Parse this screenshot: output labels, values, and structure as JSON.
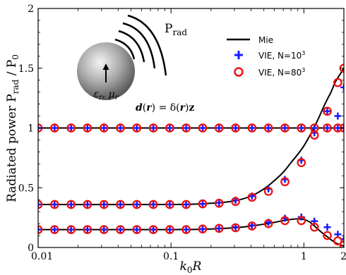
{
  "chart_data": {
    "type": "line",
    "xscale": "log",
    "xlim": [
      0.01,
      2
    ],
    "ylim": [
      0,
      2
    ],
    "x_ticks": [
      0.01,
      0.1,
      1,
      2
    ],
    "x_tick_labels": [
      "0.01",
      "0.1",
      "1",
      "2"
    ],
    "y_ticks": [
      0,
      0.5,
      1,
      1.5,
      2
    ],
    "y_tick_labels": [
      "0",
      "0.5",
      "1",
      "1.5",
      "2"
    ],
    "xlabel_main": "k",
    "xlabel_sub": "0",
    "xlabel_tail": "R",
    "ylabel_main": "Radiated power P",
    "ylabel_sub": "rad",
    "ylabel_tail": " / P",
    "ylabel_sub2": "0",
    "grid": false,
    "legend_position": "top-right",
    "legend": [
      {
        "label": "Mie",
        "style": "line",
        "color": "#000000"
      },
      {
        "label": "VIE, N=10",
        "sup": "3",
        "style": "plus",
        "color": "#1a1aff"
      },
      {
        "label": "VIE, N=80",
        "sup": "3",
        "style": "circle",
        "color": "#ee1111"
      }
    ],
    "annotations": {
      "prad_main": "P",
      "prad_sub": "rad",
      "sphere_eps": "ε",
      "sphere_eps_sub": "r",
      "sphere_comma": ", ",
      "sphere_mu": "μ",
      "sphere_mu_sub": "r",
      "dipole_d": "d",
      "dipole_r1": "(",
      "dipole_r": "r",
      "dipole_mid": ") = δ(",
      "dipole_r2": "r",
      "dipole_end": ")",
      "dipole_z": "z"
    },
    "series": [
      {
        "name": "Mie",
        "kind": "line",
        "color": "#000000",
        "curves": [
          {
            "x": [
              0.01,
              0.1,
              0.5,
              1,
              1.5,
              2
            ],
            "y": [
              1,
              1,
              1,
              1,
              1,
              1
            ]
          },
          {
            "x": [
              0.01,
              0.1,
              0.2,
              0.3,
              0.4,
              0.5,
              0.6,
              0.7,
              0.8,
              0.9,
              1.0,
              1.1,
              1.2,
              1.3,
              1.4,
              1.5,
              1.6,
              1.7,
              1.8,
              1.9,
              2.0
            ],
            "y": [
              0.36,
              0.36,
              0.37,
              0.39,
              0.43,
              0.49,
              0.56,
              0.63,
              0.71,
              0.78,
              0.85,
              0.93,
              1.01,
              1.09,
              1.17,
              1.24,
              1.3,
              1.37,
              1.42,
              1.46,
              1.5
            ]
          },
          {
            "x": [
              0.01,
              0.1,
              0.2,
              0.3,
              0.4,
              0.5,
              0.6,
              0.7,
              0.8,
              0.9,
              1.0,
              1.1,
              1.2,
              1.3,
              1.4,
              1.5,
              1.6,
              1.7,
              1.8,
              1.9,
              2.0
            ],
            "y": [
              0.15,
              0.15,
              0.155,
              0.165,
              0.18,
              0.195,
              0.21,
              0.225,
              0.235,
              0.24,
              0.235,
              0.215,
              0.18,
              0.145,
              0.115,
              0.09,
              0.065,
              0.045,
              0.03,
              0.02,
              0.01
            ]
          }
        ]
      },
      {
        "name": "VIE, N=10^3",
        "kind": "plus",
        "color": "#1a1aff",
        "curves": [
          {
            "x": [
              0.01,
              0.0133,
              0.0177,
              0.0235,
              0.0313,
              0.0416,
              0.0553,
              0.0736,
              0.0979,
              0.13,
              0.173,
              0.23,
              0.306,
              0.407,
              0.541,
              0.72,
              0.957,
              1.2,
              1.5,
              1.8,
              2.0
            ],
            "y": [
              1,
              1,
              1,
              1,
              1,
              1,
              1,
              1,
              1,
              1,
              1,
              1,
              1,
              1,
              1,
              1,
              1,
              1,
              1,
              1,
              1
            ]
          },
          {
            "x": [
              0.01,
              0.0133,
              0.0177,
              0.0235,
              0.0313,
              0.0416,
              0.0553,
              0.0736,
              0.0979,
              0.13,
              0.173,
              0.23,
              0.306,
              0.407,
              0.541,
              0.72,
              0.957,
              1.2,
              1.5,
              1.8,
              2.0
            ],
            "y": [
              0.36,
              0.36,
              0.36,
              0.36,
              0.36,
              0.36,
              0.36,
              0.36,
              0.36,
              0.36,
              0.365,
              0.375,
              0.395,
              0.43,
              0.49,
              0.57,
              0.73,
              0.96,
              1.14,
              1.1,
              1.34
            ]
          },
          {
            "x": [
              0.01,
              0.0133,
              0.0177,
              0.0235,
              0.0313,
              0.0416,
              0.0553,
              0.0736,
              0.0979,
              0.13,
              0.173,
              0.23,
              0.306,
              0.407,
              0.541,
              0.72,
              0.957,
              1.2,
              1.5,
              1.8,
              2.0
            ],
            "y": [
              0.15,
              0.15,
              0.15,
              0.15,
              0.15,
              0.15,
              0.15,
              0.15,
              0.15,
              0.15,
              0.155,
              0.16,
              0.17,
              0.185,
              0.21,
              0.245,
              0.255,
              0.22,
              0.17,
              0.11,
              0.07
            ]
          }
        ]
      },
      {
        "name": "VIE, N=80^3",
        "kind": "circle",
        "color": "#ee1111",
        "curves": [
          {
            "x": [
              0.01,
              0.0133,
              0.0177,
              0.0235,
              0.0313,
              0.0416,
              0.0553,
              0.0736,
              0.0979,
              0.13,
              0.173,
              0.23,
              0.306,
              0.407,
              0.541,
              0.72,
              0.957,
              1.2,
              1.5,
              1.8,
              2.0
            ],
            "y": [
              1,
              1,
              1,
              1,
              1,
              1,
              1,
              1,
              1,
              1,
              1,
              1,
              1,
              1,
              1,
              1,
              1,
              1,
              1,
              1,
              1
            ]
          },
          {
            "x": [
              0.01,
              0.0133,
              0.0177,
              0.0235,
              0.0313,
              0.0416,
              0.0553,
              0.0736,
              0.0979,
              0.13,
              0.173,
              0.23,
              0.306,
              0.407,
              0.541,
              0.72,
              0.957,
              1.2,
              1.5,
              1.8,
              2.0
            ],
            "y": [
              0.36,
              0.36,
              0.36,
              0.36,
              0.36,
              0.36,
              0.36,
              0.36,
              0.36,
              0.36,
              0.365,
              0.37,
              0.385,
              0.42,
              0.47,
              0.55,
              0.71,
              0.94,
              1.14,
              1.38,
              1.5
            ]
          },
          {
            "x": [
              0.01,
              0.0133,
              0.0177,
              0.0235,
              0.0313,
              0.0416,
              0.0553,
              0.0736,
              0.0979,
              0.13,
              0.173,
              0.23,
              0.306,
              0.407,
              0.541,
              0.72,
              0.957,
              1.2,
              1.5,
              1.8,
              2.0
            ],
            "y": [
              0.15,
              0.15,
              0.15,
              0.15,
              0.15,
              0.15,
              0.15,
              0.15,
              0.15,
              0.15,
              0.155,
              0.16,
              0.165,
              0.18,
              0.2,
              0.225,
              0.225,
              0.17,
              0.1,
              0.055,
              0.02
            ]
          }
        ]
      }
    ]
  }
}
